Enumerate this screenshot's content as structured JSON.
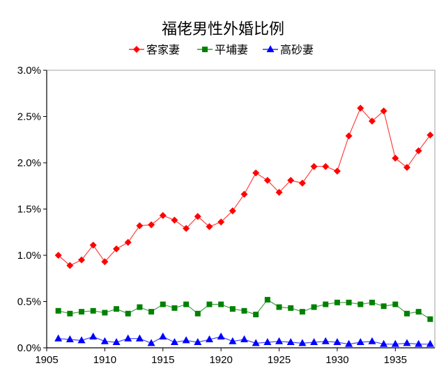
{
  "chart_data": {
    "type": "line",
    "title": "福佬男性外婚比例",
    "xlabel": "",
    "ylabel": "",
    "xlim": [
      1905,
      1938.4
    ],
    "ylim": [
      0,
      3.0
    ],
    "xticks": [
      1905,
      1910,
      1915,
      1920,
      1925,
      1930,
      1935
    ],
    "xtick_labels": [
      "1905",
      "1910",
      "1915",
      "1920",
      "1925",
      "1930",
      "1935"
    ],
    "yticks": [
      0,
      0.5,
      1.0,
      1.5,
      2.0,
      2.5,
      3.0
    ],
    "ytick_labels": [
      "0.0%",
      "0.5%",
      "1.0%",
      "1.5%",
      "2.0%",
      "2.5%",
      "3.0%"
    ],
    "grid": false,
    "legend_position": "top-center",
    "x": [
      1906,
      1907,
      1908,
      1909,
      1910,
      1911,
      1912,
      1913,
      1914,
      1915,
      1916,
      1917,
      1918,
      1919,
      1920,
      1921,
      1922,
      1923,
      1924,
      1925,
      1926,
      1927,
      1928,
      1929,
      1930,
      1931,
      1932,
      1933,
      1934,
      1935,
      1936,
      1937,
      1938
    ],
    "series": [
      {
        "name": "客家妻",
        "color": "#ff0000",
        "marker": "diamond",
        "values": [
          1.0,
          0.89,
          0.95,
          1.11,
          0.93,
          1.07,
          1.14,
          1.32,
          1.33,
          1.43,
          1.38,
          1.29,
          1.42,
          1.31,
          1.36,
          1.48,
          1.66,
          1.89,
          1.81,
          1.68,
          1.81,
          1.78,
          1.96,
          1.96,
          1.91,
          2.29,
          2.59,
          2.45,
          2.56,
          2.05,
          1.95,
          2.13,
          2.3
        ]
      },
      {
        "name": "平埔妻",
        "color": "#008000",
        "marker": "square",
        "values": [
          0.4,
          0.37,
          0.39,
          0.4,
          0.38,
          0.42,
          0.37,
          0.44,
          0.39,
          0.47,
          0.43,
          0.47,
          0.37,
          0.47,
          0.47,
          0.42,
          0.4,
          0.36,
          0.52,
          0.44,
          0.43,
          0.39,
          0.44,
          0.47,
          0.49,
          0.49,
          0.47,
          0.49,
          0.45,
          0.47,
          0.37,
          0.39,
          0.31
        ]
      },
      {
        "name": "高砂妻",
        "color": "#0000ff",
        "marker": "triangle",
        "values": [
          0.1,
          0.09,
          0.08,
          0.12,
          0.07,
          0.06,
          0.1,
          0.1,
          0.05,
          0.12,
          0.06,
          0.08,
          0.06,
          0.09,
          0.12,
          0.07,
          0.09,
          0.05,
          0.06,
          0.07,
          0.06,
          0.05,
          0.06,
          0.07,
          0.06,
          0.04,
          0.06,
          0.07,
          0.04,
          0.04,
          0.05,
          0.04,
          0.04
        ]
      }
    ]
  }
}
